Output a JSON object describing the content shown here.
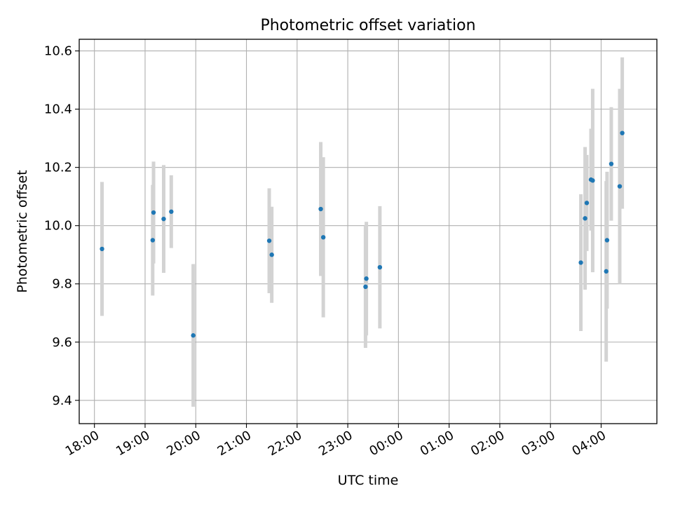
{
  "chart_data": {
    "type": "scatter",
    "title": "Photometric offset variation",
    "xlabel": "UTC time",
    "ylabel": "Photometric offset",
    "x_axis": {
      "range_hours_from_1800": [
        -0.3,
        11.1
      ],
      "ticks": [
        "18:00",
        "19:00",
        "20:00",
        "21:00",
        "22:00",
        "23:00",
        "00:00",
        "01:00",
        "02:00",
        "03:00",
        "04:00"
      ]
    },
    "y_axis": {
      "range": [
        9.32,
        10.64
      ],
      "ticks": [
        "9.4",
        "9.6",
        "9.8",
        "10.0",
        "10.2",
        "10.4",
        "10.6"
      ],
      "tick_values": [
        9.4,
        9.6,
        9.8,
        10.0,
        10.2,
        10.4,
        10.6
      ]
    },
    "grid": true,
    "marker_color": "#1f77b4",
    "errorbar_color": "#d3d3d3",
    "points": [
      {
        "time": "18:09",
        "y": 9.92,
        "err": 0.23
      },
      {
        "time": "19:09",
        "y": 9.95,
        "err": 0.19
      },
      {
        "time": "19:10",
        "y": 10.045,
        "err": 0.175
      },
      {
        "time": "19:22",
        "y": 10.023,
        "err": 0.185
      },
      {
        "time": "19:31",
        "y": 10.048,
        "err": 0.125
      },
      {
        "time": "19:57",
        "y": 9.623,
        "err": 0.245
      },
      {
        "time": "21:27",
        "y": 9.948,
        "err": 0.18
      },
      {
        "time": "21:30",
        "y": 9.9,
        "err": 0.165
      },
      {
        "time": "22:28",
        "y": 10.057,
        "err": 0.23
      },
      {
        "time": "22:31",
        "y": 9.96,
        "err": 0.275
      },
      {
        "time": "23:21",
        "y": 9.79,
        "err": 0.21
      },
      {
        "time": "23:22",
        "y": 9.818,
        "err": 0.195
      },
      {
        "time": "23:38",
        "y": 9.857,
        "err": 0.21
      },
      {
        "time": "03:36",
        "y": 9.873,
        "err": 0.235
      },
      {
        "time": "03:41",
        "y": 10.025,
        "err": 0.245
      },
      {
        "time": "03:43",
        "y": 10.078,
        "err": 0.165
      },
      {
        "time": "03:48",
        "y": 10.158,
        "err": 0.175
      },
      {
        "time": "03:50",
        "y": 10.155,
        "err": 0.315
      },
      {
        "time": "04:06",
        "y": 9.843,
        "err": 0.31
      },
      {
        "time": "04:07",
        "y": 9.95,
        "err": 0.235
      },
      {
        "time": "04:12",
        "y": 10.212,
        "err": 0.195
      },
      {
        "time": "04:22",
        "y": 10.135,
        "err": 0.335
      },
      {
        "time": "04:25",
        "y": 10.318,
        "err": 0.26
      }
    ]
  }
}
